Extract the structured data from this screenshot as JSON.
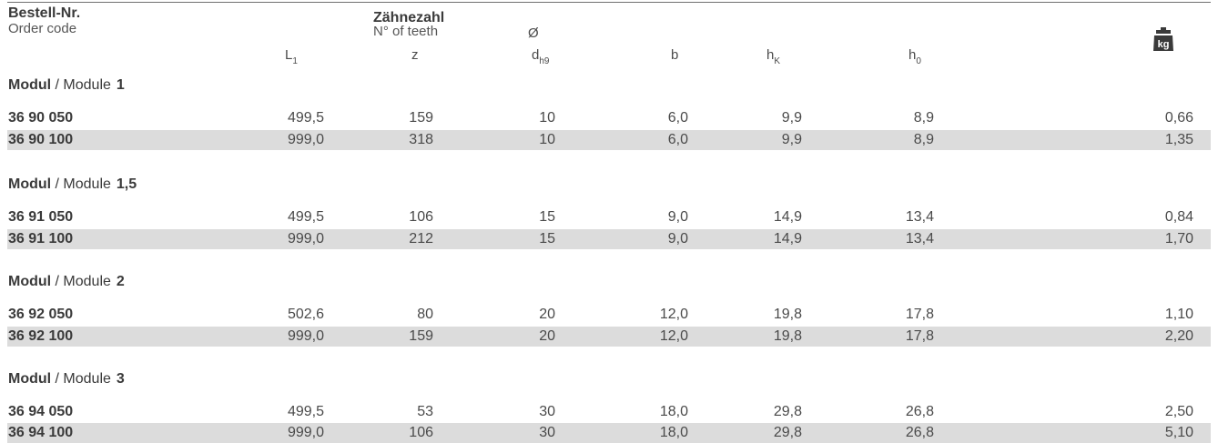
{
  "header": {
    "order_title": "Bestell-Nr.",
    "order_sub": "Order code",
    "teeth_title": "Zähnezahl",
    "teeth_sub": "N° of teeth",
    "diameter_symbol": "Ø",
    "col_L_main": "L",
    "col_L_sub": "1",
    "col_z": "z",
    "col_d_main": "d",
    "col_d_sub": "h9",
    "col_b": "b",
    "col_hK_main": "h",
    "col_hK_sub": "K",
    "col_h0_main": "h",
    "col_h0_sub": "0",
    "weight_icon_label": "kg"
  },
  "sections": [
    {
      "modul_label": "Modul",
      "separator": " / Module",
      "value": "1",
      "rows": [
        {
          "code": "36 90 050",
          "L1": "499,5",
          "z": "159",
          "d": "10",
          "b": "6,0",
          "hK": "9,9",
          "h0": "8,9",
          "kg": "0,66"
        },
        {
          "code": "36 90 100",
          "L1": "999,0",
          "z": "318",
          "d": "10",
          "b": "6,0",
          "hK": "9,9",
          "h0": "8,9",
          "kg": "1,35"
        }
      ]
    },
    {
      "modul_label": "Modul",
      "separator": " / Module",
      "value": "1,5",
      "rows": [
        {
          "code": "36 91 050",
          "L1": "499,5",
          "z": "106",
          "d": "15",
          "b": "9,0",
          "hK": "14,9",
          "h0": "13,4",
          "kg": "0,84"
        },
        {
          "code": "36 91 100",
          "L1": "999,0",
          "z": "212",
          "d": "15",
          "b": "9,0",
          "hK": "14,9",
          "h0": "13,4",
          "kg": "1,70"
        }
      ]
    },
    {
      "modul_label": "Modul",
      "separator": " / Module",
      "value": "2",
      "rows": [
        {
          "code": "36 92 050",
          "L1": "502,6",
          "z": "80",
          "d": "20",
          "b": "12,0",
          "hK": "19,8",
          "h0": "17,8",
          "kg": "1,10"
        },
        {
          "code": "36 92 100",
          "L1": "999,0",
          "z": "159",
          "d": "20",
          "b": "12,0",
          "hK": "19,8",
          "h0": "17,8",
          "kg": "2,20"
        }
      ]
    },
    {
      "modul_label": "Modul",
      "separator": " / Module",
      "value": "3",
      "rows": [
        {
          "code": "36 94 050",
          "L1": "499,5",
          "z": "53",
          "d": "30",
          "b": "18,0",
          "hK": "29,8",
          "h0": "26,8",
          "kg": "2,50"
        },
        {
          "code": "36 94 100",
          "L1": "999,0",
          "z": "106",
          "d": "30",
          "b": "18,0",
          "hK": "29,8",
          "h0": "26,8",
          "kg": "5,10"
        }
      ]
    }
  ],
  "colors": {
    "text": "#3a3a3a",
    "shaded_row": "#dcdcdc",
    "rule": "#6f6f6f",
    "icon": "#3a3a3a"
  }
}
